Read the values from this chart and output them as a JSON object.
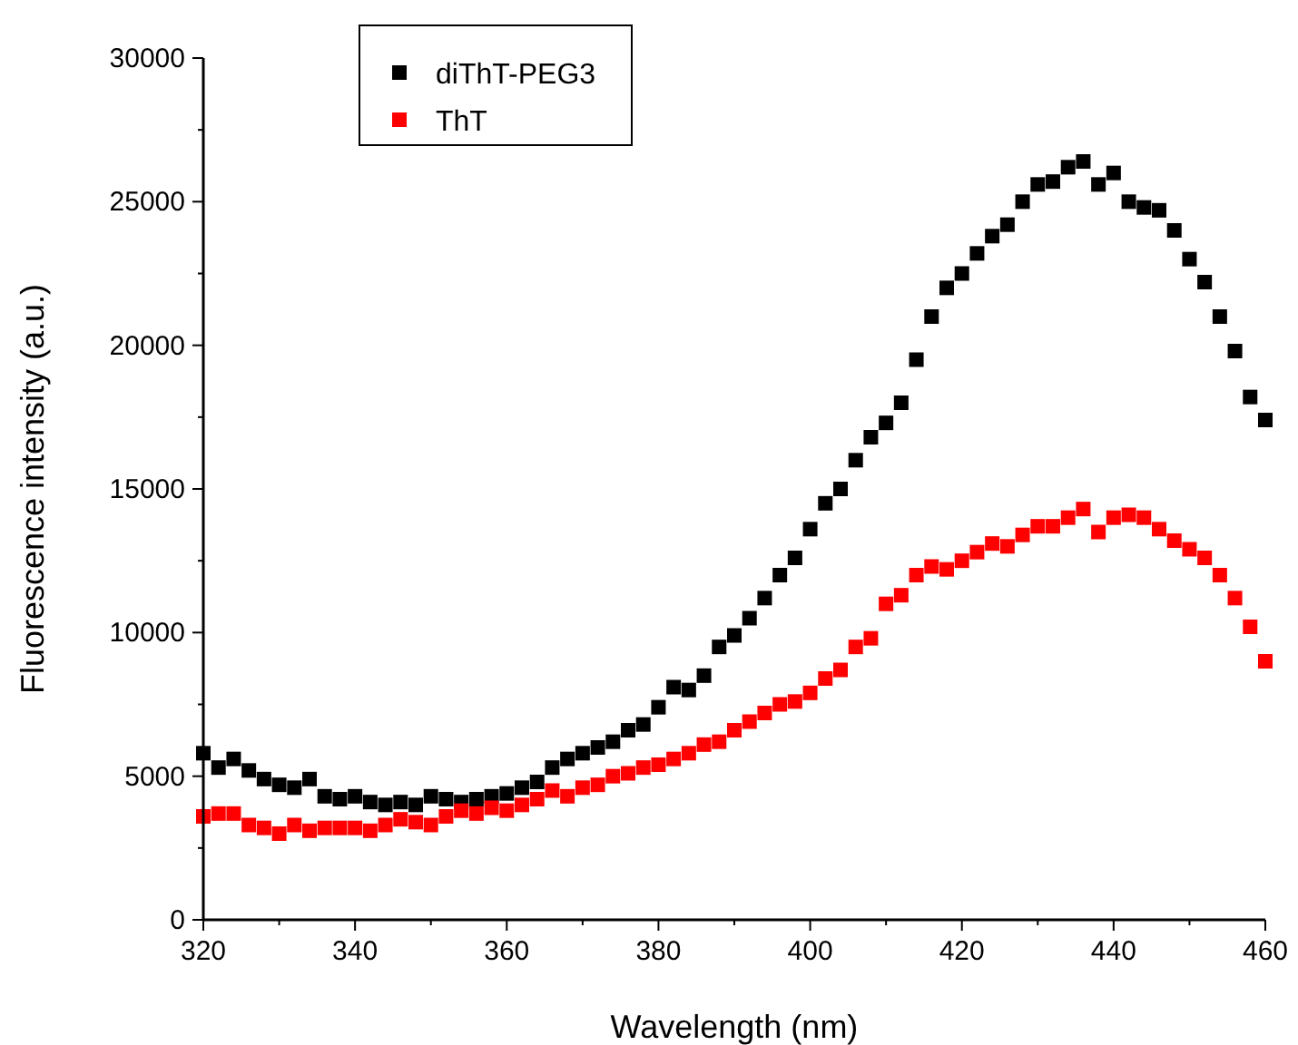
{
  "chart_data": {
    "type": "scatter",
    "xlabel": "Wavelength (nm)",
    "ylabel": "Fluorescence intensity (a.u.)",
    "xlim": [
      320,
      460
    ],
    "xticks": [
      320,
      340,
      360,
      380,
      400,
      420,
      440,
      460
    ],
    "ylim": [
      0,
      30000
    ],
    "yticks": [
      0,
      5000,
      10000,
      15000,
      20000,
      25000,
      30000
    ],
    "marker": "square",
    "legend": "top left",
    "grid": false,
    "x": [
      320,
      322,
      324,
      326,
      328,
      330,
      332,
      334,
      336,
      338,
      340,
      342,
      344,
      346,
      348,
      350,
      352,
      354,
      356,
      358,
      360,
      362,
      364,
      366,
      368,
      370,
      372,
      374,
      376,
      378,
      380,
      382,
      384,
      386,
      388,
      390,
      392,
      394,
      396,
      398,
      400,
      402,
      404,
      406,
      408,
      410,
      412,
      414,
      416,
      418,
      420,
      422,
      424,
      426,
      428,
      430,
      432,
      434,
      436,
      438,
      440,
      442,
      444,
      446,
      448,
      450,
      452,
      454,
      456,
      458,
      460
    ],
    "series": [
      {
        "name": "diThT-PEG3",
        "color": "#000000",
        "values": [
          5800,
          5300,
          5600,
          5200,
          4900,
          4700,
          4600,
          4900,
          4300,
          4200,
          4300,
          4100,
          4000,
          4100,
          4000,
          4300,
          4200,
          4100,
          4200,
          4300,
          4400,
          4600,
          4800,
          5300,
          5600,
          5800,
          6000,
          6200,
          6600,
          6800,
          7400,
          8100,
          8000,
          8500,
          9500,
          9900,
          10500,
          11200,
          12000,
          12600,
          13600,
          14500,
          15000,
          16000,
          16800,
          17300,
          18000,
          19500,
          21000,
          22000,
          22500,
          23200,
          23800,
          24200,
          25000,
          25600,
          25700,
          26200,
          26400,
          25600,
          26000,
          25000,
          24800,
          24700,
          24000,
          23000,
          22200,
          21000,
          19800,
          18200,
          17400
        ]
      },
      {
        "name": "ThT",
        "color": "#ff0000",
        "values": [
          3600,
          3700,
          3700,
          3300,
          3200,
          3000,
          3300,
          3100,
          3200,
          3200,
          3200,
          3100,
          3300,
          3500,
          3400,
          3300,
          3600,
          3800,
          3700,
          3900,
          3800,
          4000,
          4200,
          4500,
          4300,
          4600,
          4700,
          5000,
          5100,
          5300,
          5400,
          5600,
          5800,
          6100,
          6200,
          6600,
          6900,
          7200,
          7500,
          7600,
          7900,
          8400,
          8700,
          9500,
          9800,
          11000,
          11300,
          12000,
          12300,
          12200,
          12500,
          12800,
          13100,
          13000,
          13400,
          13700,
          13700,
          14000,
          14300,
          13500,
          14000,
          14100,
          14000,
          13600,
          13200,
          12900,
          12600,
          12000,
          11200,
          10200,
          9000
        ]
      }
    ]
  }
}
